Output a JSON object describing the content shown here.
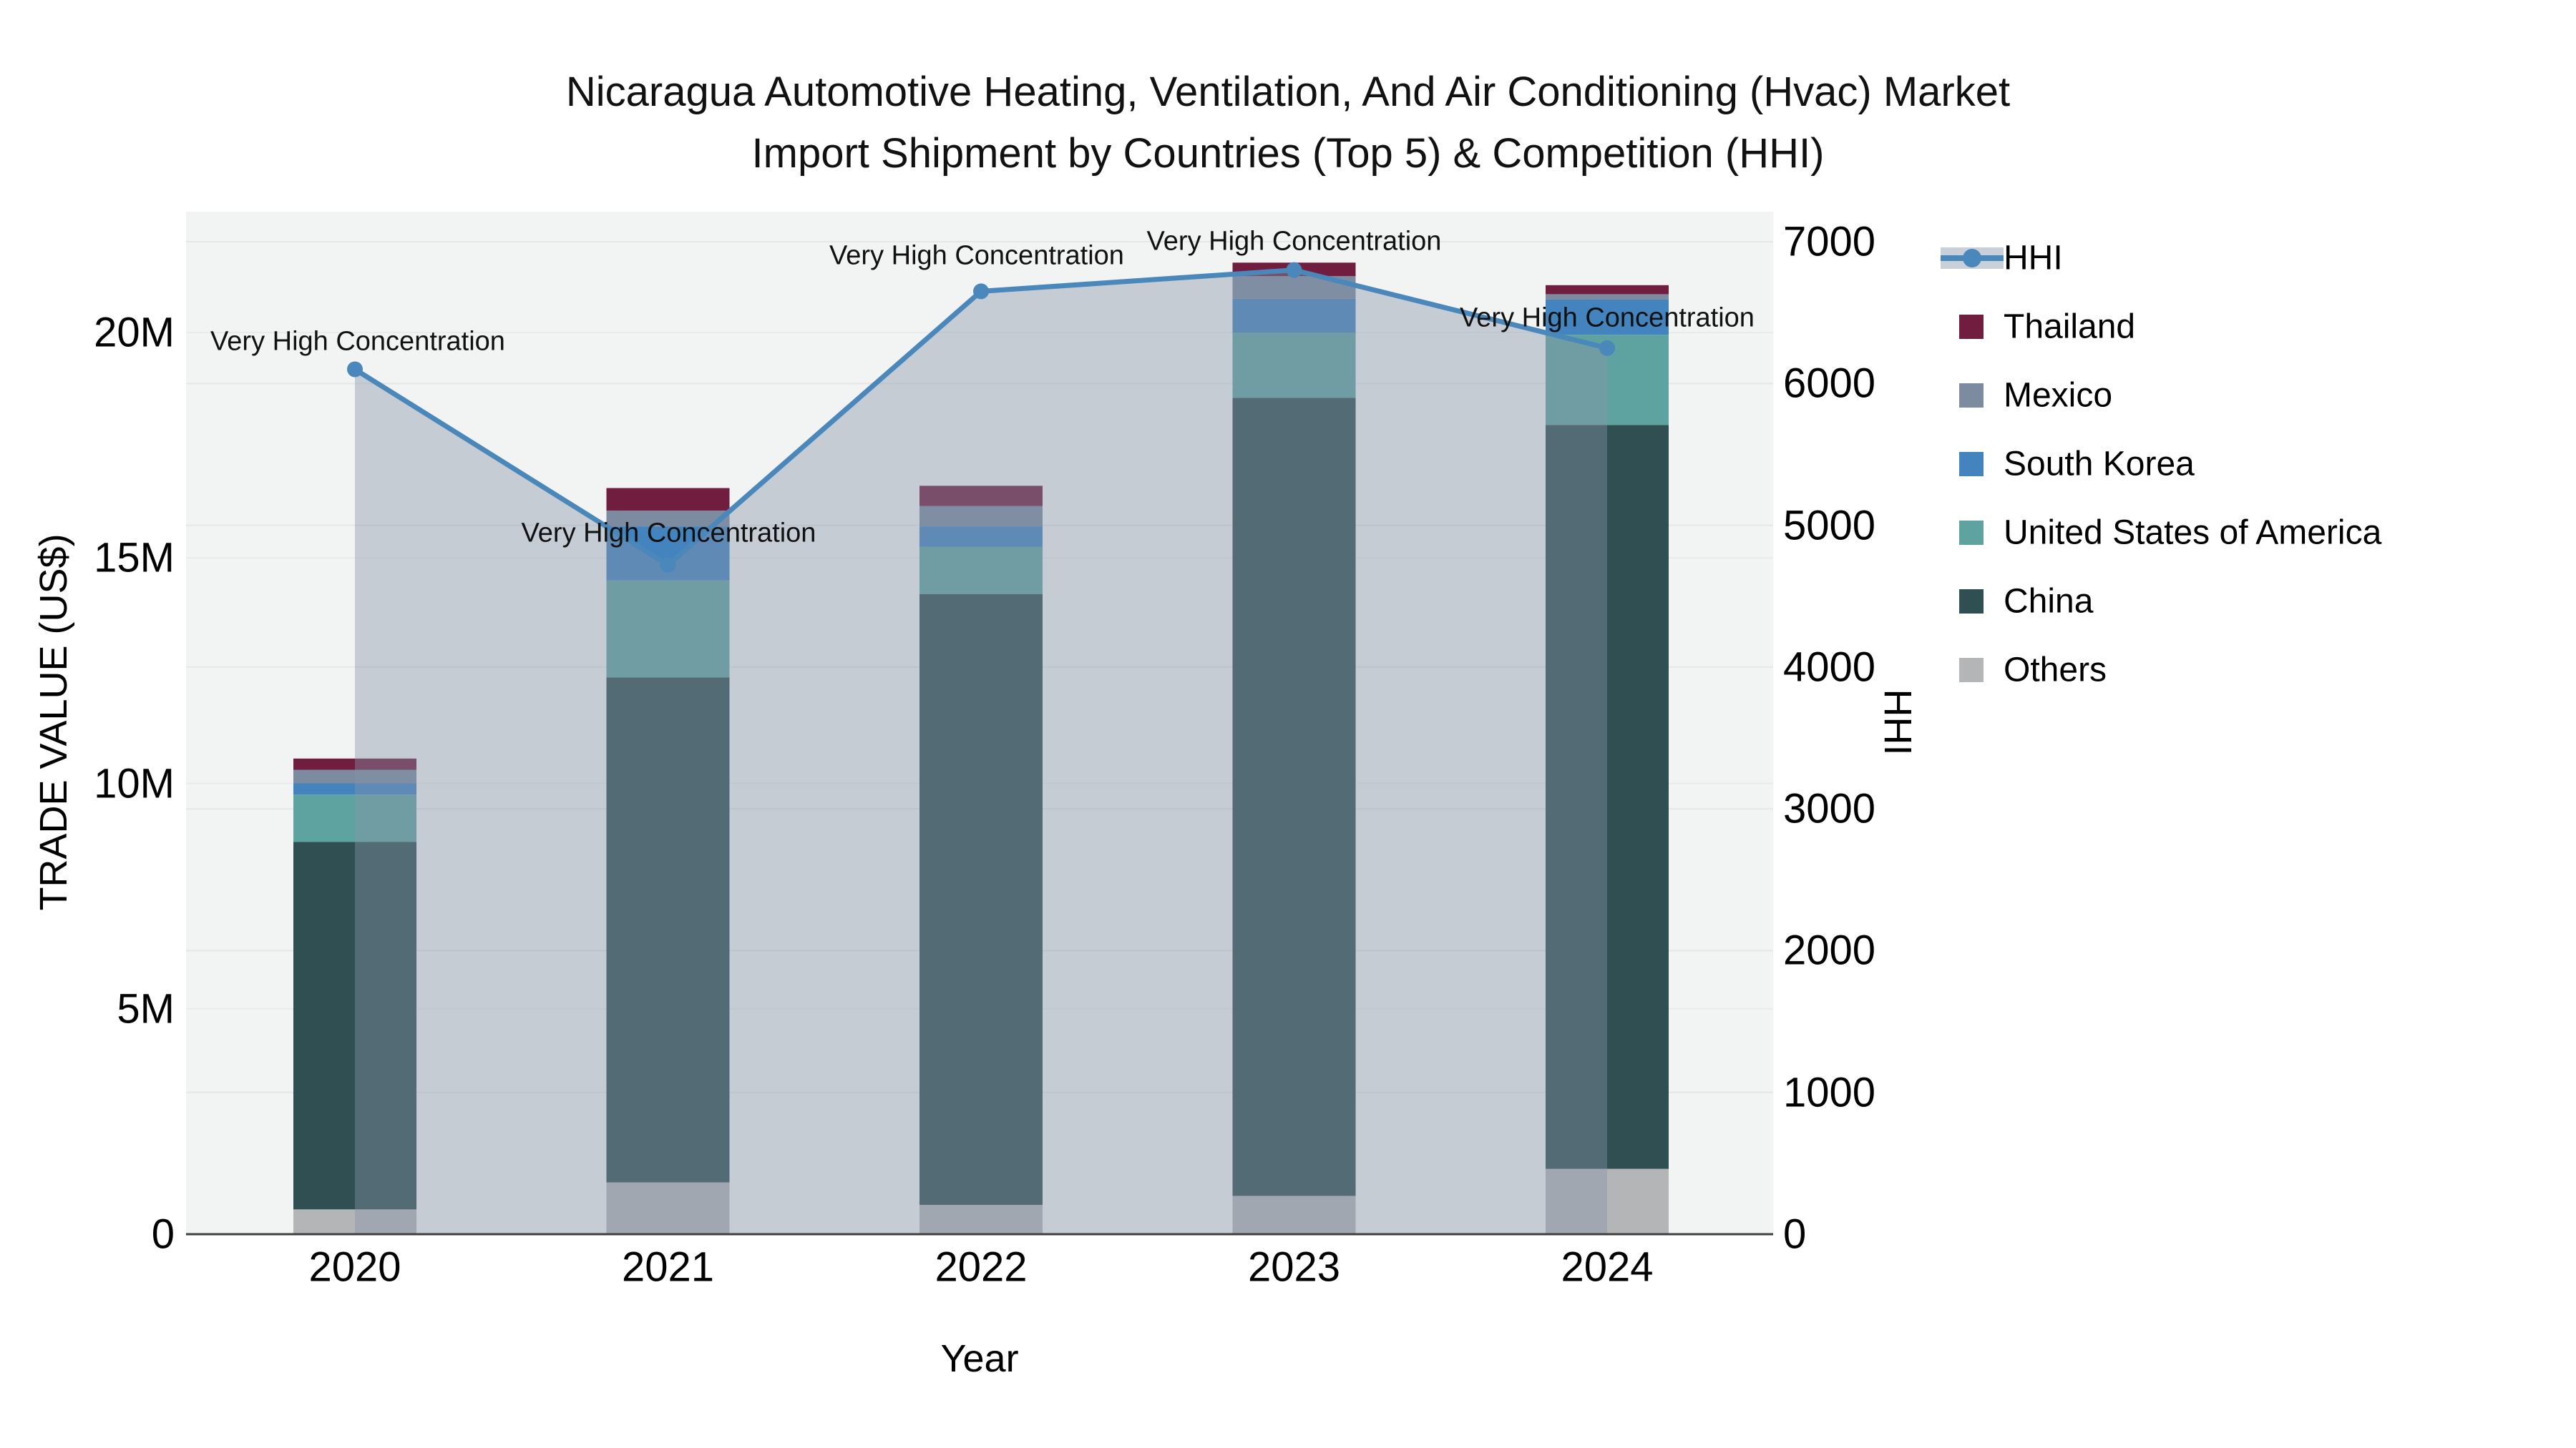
{
  "title": {
    "line1": "Nicaragua Automotive Heating, Ventilation, And Air Conditioning (Hvac) Market",
    "line2": "Import Shipment by Countries (Top 5) & Competition (HHI)"
  },
  "axes": {
    "left": {
      "title": "TRADE VALUE (US$)",
      "tick_labels": [
        "0",
        "5M",
        "10M",
        "15M",
        "20M"
      ],
      "tick_values_millions": [
        0,
        5,
        10,
        15,
        20
      ]
    },
    "right": {
      "title": "HHI",
      "tick_labels": [
        "0",
        "1000",
        "2000",
        "3000",
        "4000",
        "5000",
        "6000",
        "7000"
      ],
      "tick_values": [
        0,
        1000,
        2000,
        3000,
        4000,
        5000,
        6000,
        7000
      ]
    },
    "x": {
      "title": "Year",
      "tick_labels": [
        "2020",
        "2021",
        "2022",
        "2023",
        "2024"
      ]
    }
  },
  "legend": {
    "items": [
      {
        "label": "HHI",
        "type": "line",
        "color": "#4a87ba",
        "fill": "#c9d0da"
      },
      {
        "label": "Thailand",
        "type": "square",
        "color": "#701d40"
      },
      {
        "label": "Mexico",
        "type": "square",
        "color": "#7d8ba0"
      },
      {
        "label": "South Korea",
        "type": "square",
        "color": "#4384bf"
      },
      {
        "label": "United States of America",
        "type": "square",
        "color": "#5fa3a1"
      },
      {
        "label": "China",
        "type": "square",
        "color": "#2f4f53"
      },
      {
        "label": "Others",
        "type": "square",
        "color": "#b4b5b6"
      }
    ]
  },
  "chart_data": {
    "type": "combo_stacked_bar_line",
    "title": "Nicaragua Automotive Heating, Ventilation, And Air Conditioning (Hvac) Market Import Shipment by Countries (Top 5) & Competition (HHI)",
    "categories": [
      "2020",
      "2021",
      "2022",
      "2023",
      "2024"
    ],
    "bar_value_unit": "US$ millions (left axis)",
    "stack_order_bottom_to_top": [
      "Others",
      "China",
      "United States of America",
      "South Korea",
      "Mexico",
      "Thailand"
    ],
    "series": [
      {
        "name": "Others",
        "values": [
          0.55,
          1.15,
          0.65,
          0.85,
          1.45
        ]
      },
      {
        "name": "China",
        "values": [
          8.15,
          11.2,
          13.55,
          17.7,
          16.5
        ]
      },
      {
        "name": "United States of America",
        "values": [
          1.05,
          2.15,
          1.05,
          1.45,
          2.0
        ]
      },
      {
        "name": "South Korea",
        "values": [
          0.25,
          1.2,
          0.45,
          0.75,
          0.78
        ]
      },
      {
        "name": "Mexico",
        "values": [
          0.3,
          0.35,
          0.45,
          0.5,
          0.12
        ]
      },
      {
        "name": "Thailand",
        "values": [
          0.25,
          0.5,
          0.45,
          0.3,
          0.2
        ]
      }
    ],
    "bar_totals_millions": [
      10.55,
      16.55,
      16.6,
      21.55,
      21.05
    ],
    "line_series": {
      "name": "HHI",
      "axis": "right",
      "values": [
        6100,
        4720,
        6650,
        6800,
        6250
      ]
    },
    "annotations": [
      "Very High Concentration",
      "Very High Concentration",
      "Very High Concentration",
      "Very High Concentration",
      "Very High Concentration"
    ],
    "xlabel": "Year",
    "ylabel_left": "TRADE VALUE (US$)",
    "ylabel_right": "HHI",
    "ylim_left_millions": [
      0,
      22.7
    ],
    "ylim_right": [
      0,
      7000
    ],
    "grid": true,
    "legend_position": "right"
  },
  "colors": {
    "plot_background": "#f2f3f3",
    "figure_background": "#ffffff",
    "grid_right_axis": "#e4e6e8",
    "grid_left_axis": "#e9eaeb",
    "axis_line": "#3f3f3f",
    "hhi_line": "#4a87ba",
    "hhi_area_fill": "rgba(134,147,167,0.41)",
    "annotation_text": "#111111"
  }
}
